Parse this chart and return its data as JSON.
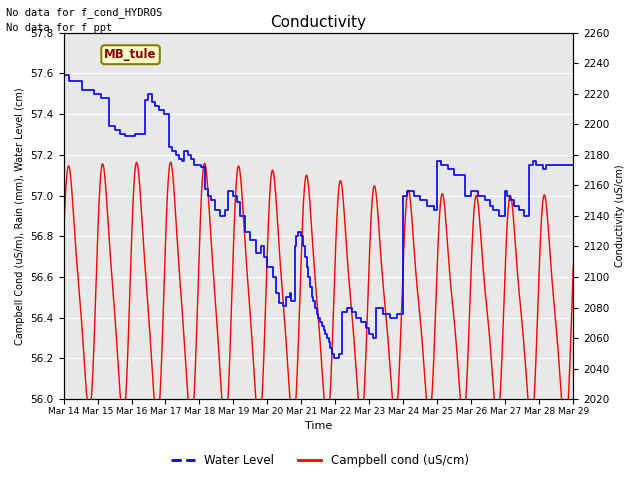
{
  "title": "Conductivity",
  "xlabel": "Time",
  "ylabel_left": "Campbell Cond (uS/m), Rain (mm), Water Level (cm)",
  "ylabel_right": "Conductivity (uS/cm)",
  "ylim_left": [
    56.0,
    57.8
  ],
  "ylim_right": [
    2020,
    2260
  ],
  "yticks_left": [
    56.0,
    56.2,
    56.4,
    56.6,
    56.8,
    57.0,
    57.2,
    57.4,
    57.6,
    57.8
  ],
  "yticks_right": [
    2020,
    2040,
    2060,
    2080,
    2100,
    2120,
    2140,
    2160,
    2180,
    2200,
    2220,
    2240,
    2260
  ],
  "xtick_labels": [
    "Mar 14",
    "Mar 15",
    "Mar 16",
    "Mar 17",
    "Mar 18",
    "Mar 19",
    "Mar 20",
    "Mar 21",
    "Mar 22",
    "Mar 23",
    "Mar 24",
    "Mar 25",
    "Mar 26",
    "Mar 27",
    "Mar 28",
    "Mar 29"
  ],
  "annotations": [
    "No data for f_cond_HYDROS",
    "No data for f_ppt"
  ],
  "box_label": "MB_tule",
  "bg_color": "#e8e8e8",
  "legend_entries": [
    "Water Level",
    "Campbell cond (uS/cm)"
  ],
  "legend_colors": [
    "blue",
    "red"
  ],
  "water_level_color": "blue",
  "campbell_cond_color": "red",
  "xlim": [
    0,
    15
  ],
  "fig_width": 6.4,
  "fig_height": 4.8,
  "dpi": 100
}
